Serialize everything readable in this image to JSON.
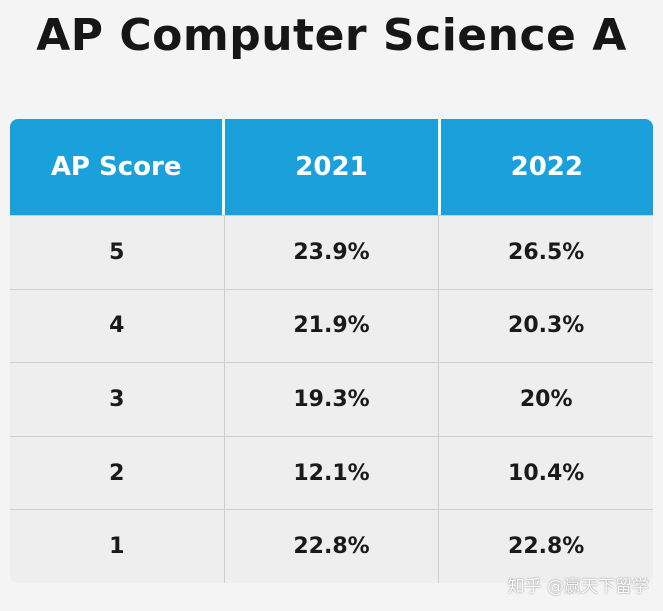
{
  "title": "AP Computer Science A",
  "table": {
    "headers": [
      "AP Score",
      "2021",
      "2022"
    ],
    "rows": [
      [
        "5",
        "23.9%",
        "26.5%"
      ],
      [
        "4",
        "21.9%",
        "20.3%"
      ],
      [
        "3",
        "19.3%",
        "20%"
      ],
      [
        "2",
        "12.1%",
        "10.4%"
      ],
      [
        "1",
        "22.8%",
        "22.8%"
      ]
    ]
  },
  "watermark": "知乎 @赢天下留学",
  "colors": {
    "header_bg": "#1aa1dc",
    "row_bg": "#eeeeee",
    "page_bg": "#f4f4f4"
  }
}
